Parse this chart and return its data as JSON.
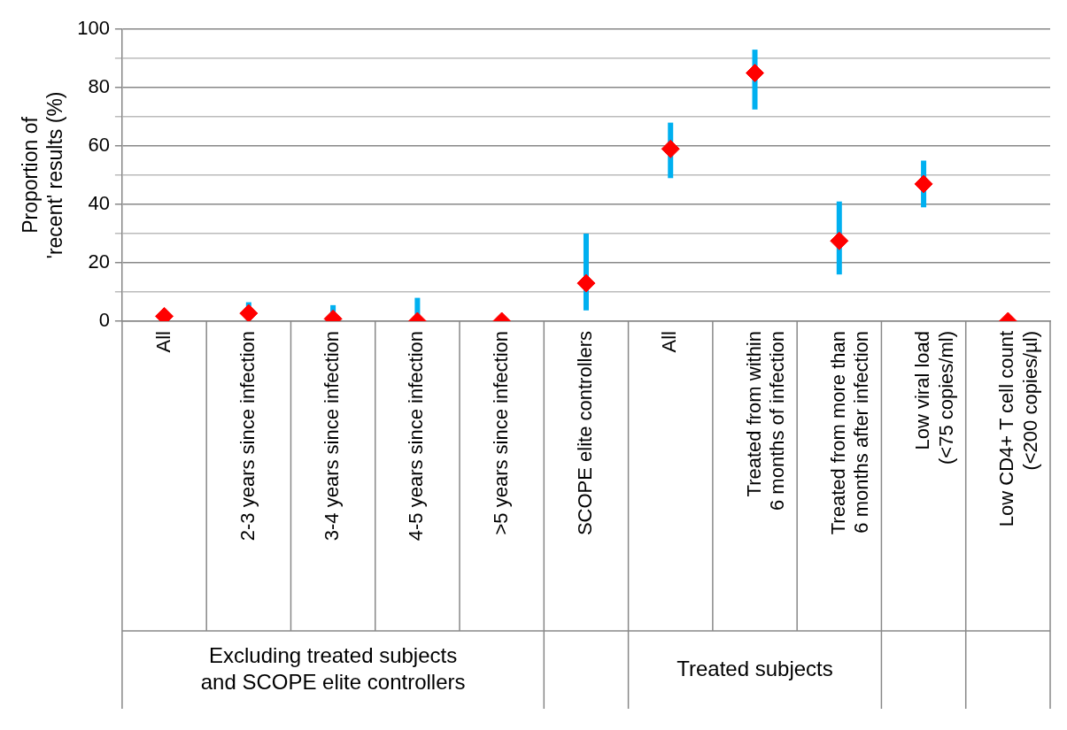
{
  "chart_data": {
    "type": "scatter",
    "ylabel": "Proportion of\n'recent' results (%)",
    "categories": [
      "All",
      "2-3 years since infection",
      "3-4 years since infection",
      "4-5 years since infection",
      ">5 years since infection",
      "SCOPE elite controllers",
      "All",
      "Treated from within\n6 months of infection",
      "Treated from more than\n6 months after infection",
      "Low viral load\n(<75 copies/ml)",
      "Low CD4+ T cell count\n(<200 copies/µl)"
    ],
    "series": [
      {
        "color": "#ff0000",
        "values": [
          1.7,
          2.7,
          0.8,
          0,
          0,
          13,
          59,
          85,
          27.5,
          47,
          0
        ],
        "errors": [
          null,
          [
            0.3,
            6.5
          ],
          [
            0,
            5.5
          ],
          [
            0,
            8
          ],
          null,
          [
            3.7,
            30
          ],
          [
            49,
            68
          ],
          [
            72.5,
            93
          ],
          [
            16,
            41
          ],
          [
            39,
            55
          ],
          null
        ]
      }
    ],
    "ylim": [
      0,
      100
    ],
    "yticks": [
      0,
      {
        "value": 10,
        "label": null
      },
      20,
      {
        "value": 30,
        "label": null
      },
      40,
      {
        "value": 50,
        "label": null
      },
      60,
      {
        "value": 70,
        "label": null
      },
      80,
      {
        "value": 90,
        "label": null
      },
      100
    ],
    "grid": true,
    "marker": "diamond",
    "legend": false,
    "annotations": [
      "Excluding treated subjects\nand SCOPE elite controllers",
      "Treated subjects"
    ]
  }
}
